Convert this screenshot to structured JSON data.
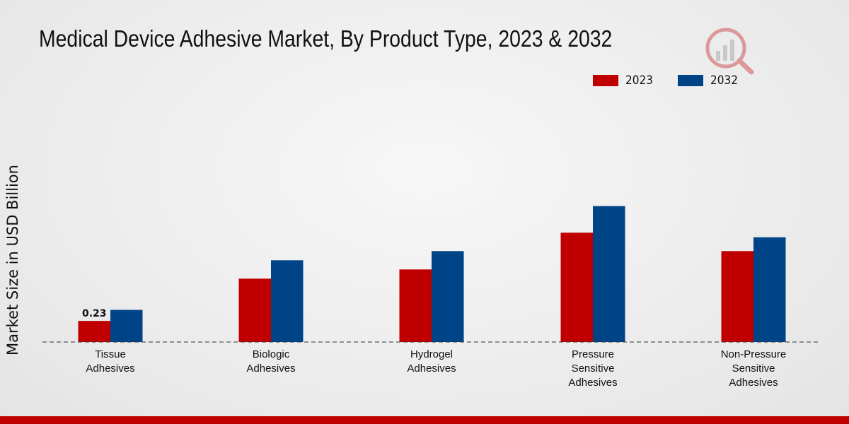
{
  "chart_data": {
    "type": "bar",
    "title": "Medical Device Adhesive Market, By Product Type, 2023 & 2032",
    "xlabel": "",
    "ylabel": "Market Size in USD Billion",
    "ylim": [
      0,
      1.5
    ],
    "categories": [
      [
        "Tissue",
        "Adhesives"
      ],
      [
        "Biologic",
        "Adhesives"
      ],
      [
        "Hydrogel",
        "Adhesives"
      ],
      [
        "Pressure",
        "Sensitive",
        "Adhesives"
      ],
      [
        "Non-Pressure",
        "Sensitive",
        "Adhesives"
      ]
    ],
    "series": [
      {
        "name": "2023",
        "color": "#c00000",
        "values": [
          0.23,
          0.69,
          0.79,
          1.19,
          0.99
        ]
      },
      {
        "name": "2032",
        "color": "#004488",
        "values": [
          0.35,
          0.89,
          0.99,
          1.48,
          1.14
        ]
      }
    ],
    "data_labels": [
      {
        "series": 0,
        "index": 0,
        "text": "0.23"
      }
    ]
  },
  "colors": {
    "accent_bar": "#c00000"
  }
}
